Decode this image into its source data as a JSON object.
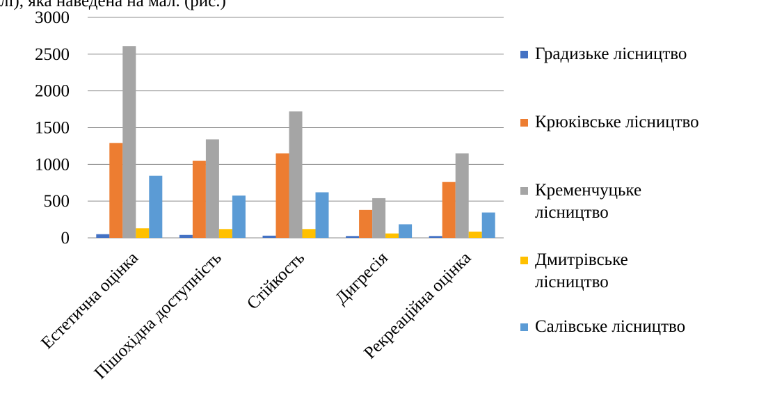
{
  "header": {
    "cropped_caption": "лі), яка наведена на мал. (рис.)"
  },
  "chart_data": {
    "type": "bar",
    "title": "",
    "xlabel": "",
    "ylabel": "",
    "ylim": [
      0,
      3000
    ],
    "yticks": [
      0,
      500,
      1000,
      1500,
      2000,
      2500,
      3000
    ],
    "grid": true,
    "legend_position": "right",
    "categories": [
      "Естетична оцінка",
      "Пішохідна доступність",
      "Стійкость",
      "Дигресія",
      "Рекреаційна оцінка"
    ],
    "series": [
      {
        "name": "Градизьке лісництво",
        "color": "#4472C4",
        "values": [
          50,
          40,
          30,
          25,
          25
        ]
      },
      {
        "name": "Крюківське лісництво",
        "color": "#ED7D31",
        "values": [
          1290,
          1050,
          1150,
          380,
          760
        ]
      },
      {
        "name": "Кременчуцьке лісництво",
        "color": "#A5A5A5",
        "values": [
          2610,
          1340,
          1720,
          540,
          1150
        ]
      },
      {
        "name": "Дмитрівське лісництво",
        "color": "#FFC000",
        "values": [
          130,
          120,
          120,
          60,
          85
        ]
      },
      {
        "name": "Салівське лісництво",
        "color": "#5B9BD5",
        "values": [
          845,
          575,
          620,
          185,
          345
        ]
      }
    ]
  }
}
